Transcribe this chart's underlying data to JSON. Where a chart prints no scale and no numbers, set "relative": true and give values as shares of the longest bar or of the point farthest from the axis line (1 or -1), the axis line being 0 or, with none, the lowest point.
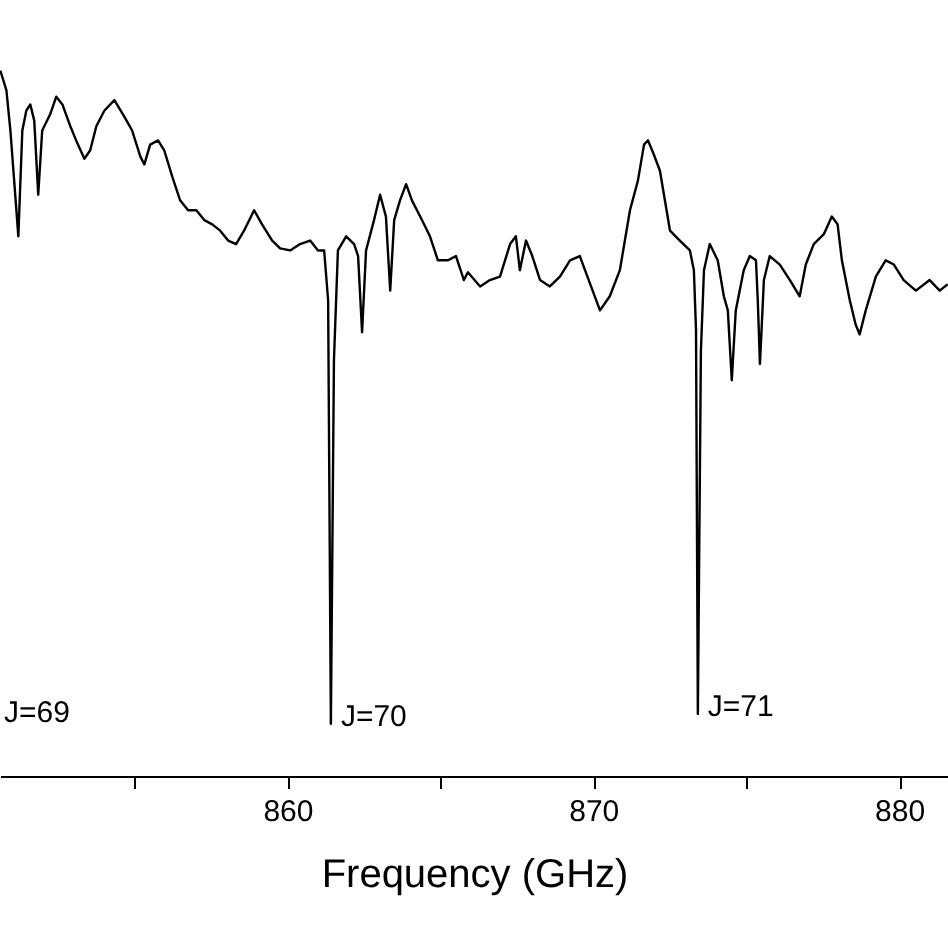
{
  "chart_data": {
    "type": "line",
    "relative": true,
    "xlabel": "Frequency (GHz)",
    "xlim": [
      850.6,
      881.6
    ],
    "xticks": [
      {
        "value": 855,
        "label": null
      },
      860,
      {
        "value": 865,
        "label": null
      },
      870,
      {
        "value": 875,
        "label": null
      },
      880
    ],
    "grid": false,
    "marker": "none",
    "line_style": "solid",
    "x": [
      850.61,
      850.81,
      850.94,
      851.2,
      851.33,
      851.46,
      851.59,
      851.72,
      851.85,
      851.98,
      852.24,
      852.44,
      852.64,
      852.9,
      853.09,
      853.36,
      853.55,
      853.75,
      854.01,
      854.34,
      854.66,
      854.92,
      855.19,
      855.32,
      855.51,
      855.77,
      855.97,
      856.23,
      856.49,
      856.75,
      857.02,
      857.28,
      857.54,
      857.8,
      858.06,
      858.32,
      858.58,
      858.91,
      859.17,
      859.5,
      859.76,
      860.09,
      860.41,
      860.74,
      861.0,
      861.2,
      861.33,
      861.42,
      861.52,
      861.65,
      861.92,
      862.18,
      862.31,
      862.44,
      862.57,
      862.83,
      863.03,
      863.22,
      863.36,
      863.49,
      863.68,
      863.88,
      864.07,
      864.34,
      864.66,
      864.92,
      865.25,
      865.51,
      865.77,
      865.9,
      866.3,
      866.62,
      866.95,
      867.28,
      867.47,
      867.6,
      867.8,
      867.99,
      868.26,
      868.58,
      868.91,
      869.24,
      869.56,
      870.22,
      870.54,
      870.87,
      871.2,
      871.46,
      871.66,
      871.79,
      871.98,
      872.18,
      872.51,
      872.83,
      873.16,
      873.29,
      873.36,
      873.42,
      873.52,
      873.62,
      873.81,
      874.07,
      874.27,
      874.4,
      874.53,
      874.66,
      874.92,
      875.12,
      875.32,
      875.38,
      875.45,
      875.58,
      875.77,
      876.1,
      876.43,
      876.75,
      876.95,
      877.21,
      877.54,
      877.8,
      877.99,
      878.13,
      878.39,
      878.58,
      878.71,
      878.91,
      879.24,
      879.56,
      879.83,
      880.15,
      880.55,
      881.0,
      881.33,
      881.59
    ],
    "series": [
      {
        "color": "#000000",
        "values": [
          1.0,
          0.972,
          0.915,
          0.765,
          0.915,
          0.943,
          0.952,
          0.929,
          0.824,
          0.915,
          0.938,
          0.963,
          0.952,
          0.921,
          0.901,
          0.875,
          0.887,
          0.921,
          0.943,
          0.958,
          0.935,
          0.915,
          0.878,
          0.867,
          0.895,
          0.901,
          0.887,
          0.85,
          0.816,
          0.802,
          0.802,
          0.788,
          0.782,
          0.773,
          0.759,
          0.754,
          0.773,
          0.802,
          0.782,
          0.759,
          0.748,
          0.745,
          0.754,
          0.759,
          0.745,
          0.745,
          0.674,
          0.074,
          0.589,
          0.745,
          0.765,
          0.754,
          0.737,
          0.629,
          0.745,
          0.788,
          0.824,
          0.793,
          0.688,
          0.788,
          0.816,
          0.839,
          0.816,
          0.793,
          0.765,
          0.731,
          0.731,
          0.737,
          0.703,
          0.714,
          0.694,
          0.703,
          0.708,
          0.754,
          0.765,
          0.717,
          0.759,
          0.739,
          0.703,
          0.694,
          0.708,
          0.731,
          0.737,
          0.66,
          0.68,
          0.717,
          0.802,
          0.844,
          0.895,
          0.901,
          0.881,
          0.858,
          0.773,
          0.759,
          0.745,
          0.717,
          0.632,
          0.088,
          0.603,
          0.717,
          0.754,
          0.731,
          0.68,
          0.66,
          0.561,
          0.66,
          0.717,
          0.737,
          0.731,
          0.674,
          0.584,
          0.703,
          0.737,
          0.725,
          0.703,
          0.68,
          0.725,
          0.754,
          0.768,
          0.793,
          0.782,
          0.731,
          0.674,
          0.64,
          0.626,
          0.66,
          0.708,
          0.731,
          0.725,
          0.703,
          0.688,
          0.703,
          0.688,
          0.697
        ]
      }
    ],
    "annotations": [
      "J=69",
      {
        "text": "J=70",
        "x": 861.42,
        "y": 0.074
      },
      {
        "text": "J=71",
        "x": 873.42,
        "y": 0.088
      }
    ]
  }
}
